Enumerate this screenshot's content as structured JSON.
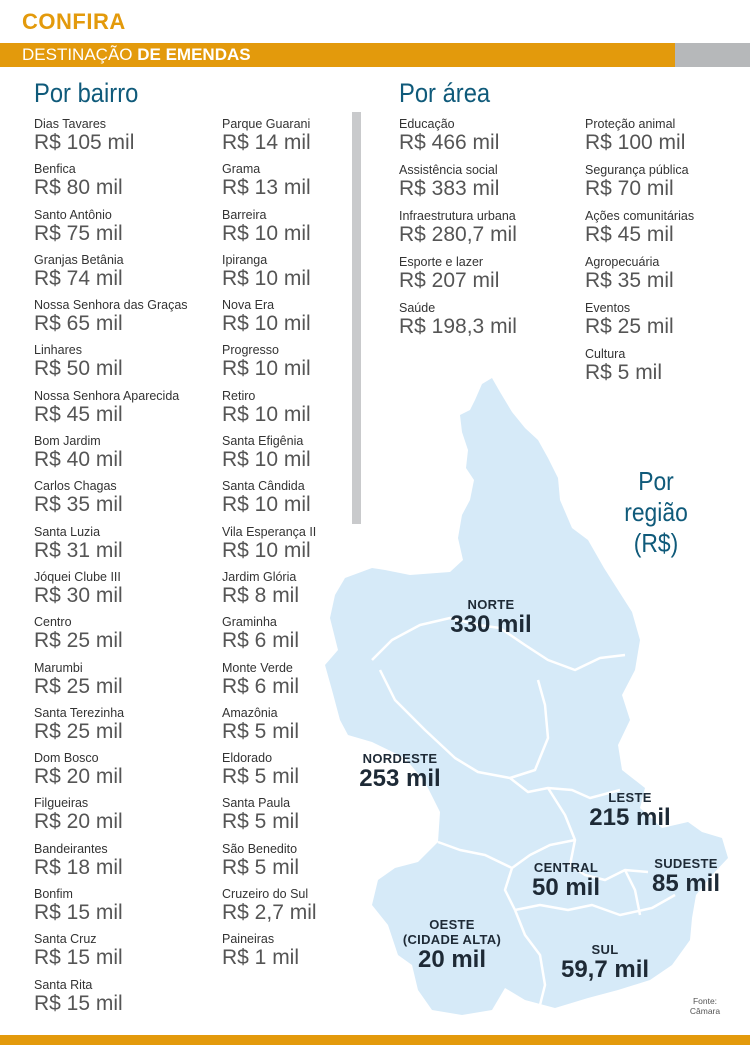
{
  "header": {
    "kicker": "CONFIRA",
    "title_light": "DESTINAÇÃO ",
    "title_bold": "DE EMENDAS"
  },
  "colors": {
    "accent": "#e39a0c",
    "title_blue": "#0f5a7a",
    "map_fill": "#d6eaf8",
    "gray": "#b6b8ba"
  },
  "bairro": {
    "title": "Por bairro",
    "col1": [
      {
        "name": "Dias Tavares",
        "value": "R$ 105 mil"
      },
      {
        "name": "Benfica",
        "value": "R$ 80 mil"
      },
      {
        "name": "Santo Antônio",
        "value": "R$ 75 mil"
      },
      {
        "name": "Granjas Betânia",
        "value": "R$ 74 mil"
      },
      {
        "name": "Nossa Senhora das Graças",
        "value": "R$ 65 mil"
      },
      {
        "name": "Linhares",
        "value": "R$ 50 mil"
      },
      {
        "name": "Nossa Senhora Aparecida",
        "value": "R$ 45 mil"
      },
      {
        "name": "Bom Jardim",
        "value": "R$ 40 mil"
      },
      {
        "name": "Carlos Chagas",
        "value": "R$ 35 mil"
      },
      {
        "name": "Santa Luzia",
        "value": "R$ 31 mil"
      },
      {
        "name": "Jóquei Clube III",
        "value": "R$ 30 mil"
      },
      {
        "name": "Centro",
        "value": "R$ 25 mil"
      },
      {
        "name": "Marumbi",
        "value": "R$ 25 mil"
      },
      {
        "name": "Santa Terezinha",
        "value": "R$ 25 mil"
      },
      {
        "name": "Dom Bosco",
        "value": "R$ 20 mil"
      },
      {
        "name": "Filgueiras",
        "value": "R$ 20 mil"
      },
      {
        "name": "Bandeirantes",
        "value": "R$ 18 mil"
      },
      {
        "name": "Bonfim",
        "value": "R$ 15 mil"
      },
      {
        "name": "Santa Cruz",
        "value": "R$ 15 mil"
      },
      {
        "name": "Santa Rita",
        "value": "R$ 15 mil"
      }
    ],
    "col2": [
      {
        "name": "Parque Guarani",
        "value": "R$ 14 mil"
      },
      {
        "name": "Grama",
        "value": "R$ 13 mil"
      },
      {
        "name": "Barreira",
        "value": "R$ 10 mil"
      },
      {
        "name": "Ipiranga",
        "value": "R$ 10 mil"
      },
      {
        "name": "Nova Era",
        "value": "R$ 10 mil"
      },
      {
        "name": "Progresso",
        "value": "R$ 10 mil"
      },
      {
        "name": "Retiro",
        "value": "R$ 10 mil"
      },
      {
        "name": "Santa Efigênia",
        "value": "R$ 10 mil"
      },
      {
        "name": "Santa Cândida",
        "value": "R$ 10 mil"
      },
      {
        "name": "Vila Esperança II",
        "value": "R$ 10 mil"
      },
      {
        "name": "Jardim Glória",
        "value": "R$ 8 mil"
      },
      {
        "name": "Graminha",
        "value": "R$ 6 mil"
      },
      {
        "name": "Monte Verde",
        "value": "R$ 6 mil"
      },
      {
        "name": "Amazônia",
        "value": "R$ 5 mil"
      },
      {
        "name": "Eldorado",
        "value": "R$ 5 mil"
      },
      {
        "name": "Santa Paula",
        "value": "R$ 5 mil"
      },
      {
        "name": "São Benedito",
        "value": "R$ 5 mil"
      },
      {
        "name": "Cruzeiro do Sul",
        "value": "R$ 2,7 mil"
      },
      {
        "name": "Paineiras",
        "value": "R$ 1 mil"
      }
    ]
  },
  "area": {
    "title": "Por área",
    "col1": [
      {
        "name": "Educação",
        "value": "R$ 466 mil"
      },
      {
        "name": "Assistência social",
        "value": "R$ 383 mil"
      },
      {
        "name": "Infraestrutura urbana",
        "value": "R$ 280,7 mil"
      },
      {
        "name": "Esporte e lazer",
        "value": "R$ 207 mil"
      },
      {
        "name": "Saúde",
        "value": "R$ 198,3 mil"
      }
    ],
    "col2": [
      {
        "name": "Proteção animal",
        "value": "R$ 100 mil"
      },
      {
        "name": "Segurança pública",
        "value": "R$ 70 mil"
      },
      {
        "name": "Ações comunitárias",
        "value": "R$ 45 mil"
      },
      {
        "name": "Agropecuária",
        "value": "R$ 35 mil"
      },
      {
        "name": "Eventos",
        "value": "R$ 25 mil"
      },
      {
        "name": "Cultura",
        "value": "R$ 5 mil"
      }
    ]
  },
  "regiao": {
    "title_lines": [
      "Por",
      "região",
      "(R$)"
    ],
    "regions": {
      "norte": {
        "name": "NORTE",
        "value": "330 mil"
      },
      "nordeste": {
        "name": "NORDESTE",
        "value": "253 mil"
      },
      "leste": {
        "name": "LESTE",
        "value": "215 mil"
      },
      "central": {
        "name": "CENTRAL",
        "value": "50 mil"
      },
      "sudeste": {
        "name": "SUDESTE",
        "value": "85 mil"
      },
      "oeste": {
        "name_lines": [
          "OESTE",
          "(CIDADE ALTA)"
        ],
        "value": "20 mil"
      },
      "sul": {
        "name": "SUL",
        "value": "59,7 mil"
      }
    }
  },
  "source": {
    "lines": [
      "Fonte:",
      "Câmara"
    ]
  }
}
